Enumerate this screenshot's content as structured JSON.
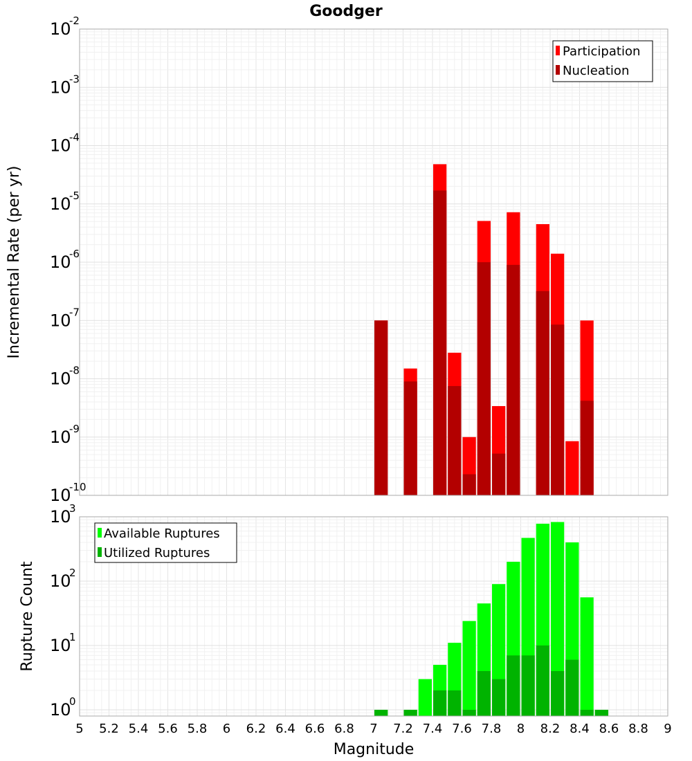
{
  "title": "Goodger",
  "chart_data": [
    {
      "type": "bar",
      "name": "incremental-rate",
      "title": "Goodger",
      "xlabel": "Magnitude",
      "ylabel": "Incremental Rate (per yr)",
      "yscale": "log",
      "ylim": [
        1e-10,
        0.01
      ],
      "xlim": [
        5,
        9
      ],
      "ytick_exponents": [
        -10,
        -9,
        -8,
        -7,
        -6,
        -5,
        -4,
        -3,
        -2
      ],
      "bin_width": 0.1,
      "grid": true,
      "legend_position": "top-right",
      "series": [
        {
          "name": "Participation",
          "color": "#ff0000",
          "x": [
            7.05,
            7.25,
            7.45,
            7.55,
            7.65,
            7.75,
            7.85,
            7.95,
            8.15,
            8.25,
            8.35,
            8.45
          ],
          "values": [
            1e-07,
            1.5e-08,
            4.8e-05,
            2.8e-08,
            1e-09,
            5.1e-06,
            3.4e-09,
            7.2e-06,
            4.5e-06,
            1.4e-06,
            8.5e-10,
            1e-07
          ]
        },
        {
          "name": "Nucleation",
          "color": "#b30000",
          "x": [
            7.05,
            7.25,
            7.45,
            7.55,
            7.65,
            7.75,
            7.85,
            7.95,
            8.15,
            8.25,
            8.45
          ],
          "values": [
            1e-07,
            9e-09,
            1.7e-05,
            7.5e-09,
            2.3e-10,
            1e-06,
            5.2e-10,
            9e-07,
            3.2e-07,
            8.5e-08,
            4.2e-09
          ]
        }
      ]
    },
    {
      "type": "bar",
      "name": "rupture-count",
      "xlabel": "Magnitude",
      "ylabel": "Rupture Count",
      "yscale": "log",
      "ylim": [
        0.8,
        1000
      ],
      "xlim": [
        5,
        9
      ],
      "ytick_exponents": [
        0,
        1,
        2,
        3
      ],
      "bin_width": 0.1,
      "grid": true,
      "legend_position": "top-left",
      "xticks": [
        "5",
        "5.2",
        "5.4",
        "5.6",
        "5.8",
        "6",
        "6.2",
        "6.4",
        "6.6",
        "6.8",
        "7",
        "7.2",
        "7.4",
        "7.6",
        "7.8",
        "8",
        "8.2",
        "8.4",
        "8.6",
        "8.8",
        "9"
      ],
      "series": [
        {
          "name": "Available Ruptures",
          "color": "#00ff00",
          "x": [
            7.05,
            7.25,
            7.35,
            7.45,
            7.55,
            7.65,
            7.75,
            7.85,
            7.95,
            8.05,
            8.15,
            8.25,
            8.35,
            8.45,
            8.55
          ],
          "values": [
            1,
            1,
            3,
            5,
            11,
            24,
            45,
            90,
            200,
            470,
            780,
            830,
            400,
            56,
            1
          ]
        },
        {
          "name": "Utilized Ruptures",
          "color": "#00b300",
          "x": [
            7.05,
            7.25,
            7.45,
            7.55,
            7.65,
            7.75,
            7.85,
            7.95,
            8.05,
            8.15,
            8.25,
            8.35,
            8.45,
            8.55
          ],
          "values": [
            1,
            1,
            2,
            2,
            1,
            4,
            3,
            7,
            7,
            10,
            4,
            6,
            1,
            1
          ]
        }
      ]
    }
  ]
}
